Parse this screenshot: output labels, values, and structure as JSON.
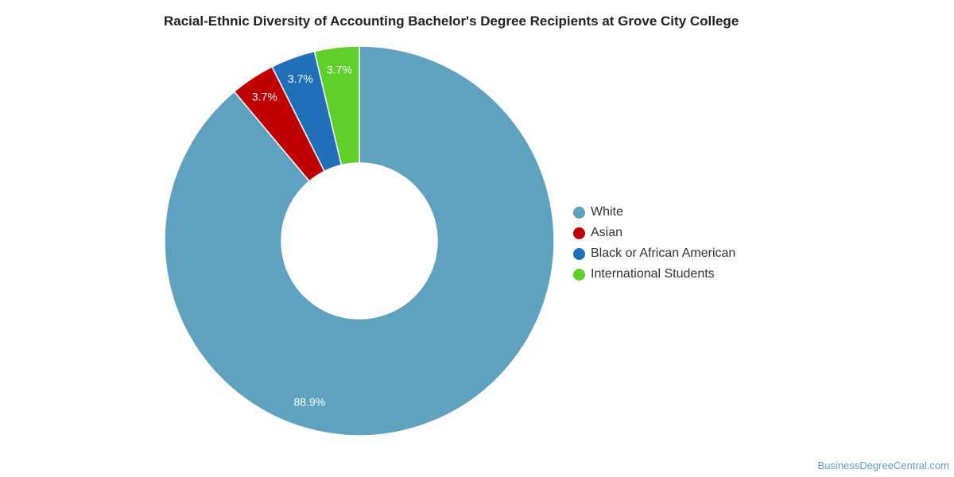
{
  "chart_data": {
    "type": "pie",
    "title": "Racial-Ethnic Diversity of Accounting Bachelor's Degree Recipients at Grove City College",
    "categories": [
      "White",
      "Asian",
      "Black or African American",
      "International Students"
    ],
    "values": [
      88.9,
      3.7,
      3.7,
      3.7
    ],
    "value_labels": [
      "88.9%",
      "3.7%",
      "3.7%",
      "3.7%"
    ],
    "colors": [
      "#5fa2bf",
      "#c00000",
      "#1f70b8",
      "#5fcf2a"
    ],
    "donut": true,
    "legend_position": "right"
  },
  "watermark": "BusinessDegreeCentral.com"
}
